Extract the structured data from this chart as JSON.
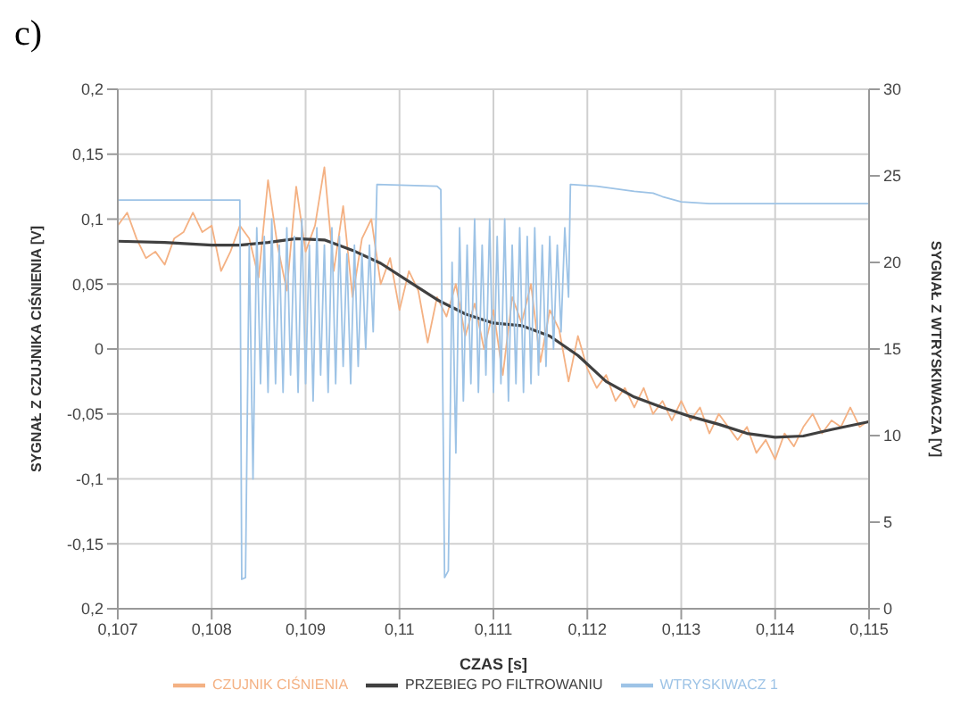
{
  "chart_data": {
    "type": "line",
    "title": "c)",
    "xlabel": "CZAS [s]",
    "ylabel": "SYGNAŁ Z CZUJNIKA CIŚNIENIA [V]",
    "y2label": "SYGNAŁ Z WTRYSKIWACZA [V]",
    "xlim": [
      0.107,
      0.115
    ],
    "xticks": [
      {
        "value": 0.107,
        "label": "0,107"
      },
      {
        "value": 0.108,
        "label": "0,108"
      },
      {
        "value": 0.109,
        "label": "0,109"
      },
      {
        "value": 0.11,
        "label": "0,11"
      },
      {
        "value": 0.111,
        "label": "0,111"
      },
      {
        "value": 0.112,
        "label": "0,112"
      },
      {
        "value": 0.113,
        "label": "0,113"
      },
      {
        "value": 0.114,
        "label": "0,114"
      },
      {
        "value": 0.115,
        "label": "0,115"
      }
    ],
    "ylim": [
      -0.2,
      0.2
    ],
    "yticks": [
      {
        "value": -0.2,
        "label": "0,2"
      },
      {
        "value": -0.15,
        "label": "-0,15"
      },
      {
        "value": -0.1,
        "label": "-0,1"
      },
      {
        "value": -0.05,
        "label": "-0,05"
      },
      0,
      {
        "value": 0.05,
        "label": "0,05"
      },
      {
        "value": 0.1,
        "label": "0,1"
      },
      {
        "value": 0.15,
        "label": "0,15"
      },
      {
        "value": 0.2,
        "label": "0,2"
      }
    ],
    "y2lim": [
      0,
      30
    ],
    "y2ticks": [
      0,
      5,
      10,
      15,
      20,
      25,
      30
    ],
    "grid": true,
    "legend": "bottom",
    "marker": "none",
    "line_style": "solid",
    "series": [
      {
        "name": "CZUJNIK CIŚNIENIA",
        "color": "#f4b183",
        "x": [
          0.107,
          0.1071,
          0.1072,
          0.1073,
          0.1074,
          0.1075,
          0.1076,
          0.1077,
          0.1078,
          0.1079,
          0.108,
          0.1081,
          0.1082,
          0.1083,
          0.1084,
          0.1085,
          0.1086,
          0.1087,
          0.1088,
          0.1089,
          0.109,
          0.1091,
          0.1092,
          0.1093,
          0.1094,
          0.1095,
          0.1096,
          0.1097,
          0.1098,
          0.1099,
          0.11,
          0.1101,
          0.1102,
          0.1103,
          0.1104,
          0.1105,
          0.1106,
          0.1107,
          0.1108,
          0.1109,
          0.111,
          0.1111,
          0.1112,
          0.1113,
          0.1114,
          0.1115,
          0.1116,
          0.1117,
          0.1118,
          0.1119,
          0.112,
          0.1121,
          0.1122,
          0.1123,
          0.1124,
          0.1125,
          0.1126,
          0.1127,
          0.1128,
          0.1129,
          0.113,
          0.1131,
          0.1132,
          0.1133,
          0.1134,
          0.1135,
          0.1136,
          0.1137,
          0.1138,
          0.1139,
          0.114,
          0.1141,
          0.1142,
          0.1143,
          0.1144,
          0.1145,
          0.1146,
          0.1147,
          0.1148,
          0.1149,
          0.115
        ],
        "values": [
          0.095,
          0.105,
          0.085,
          0.07,
          0.075,
          0.065,
          0.085,
          0.09,
          0.105,
          0.09,
          0.095,
          0.06,
          0.075,
          0.095,
          0.085,
          0.055,
          0.13,
          0.08,
          0.045,
          0.125,
          0.075,
          0.095,
          0.14,
          0.06,
          0.11,
          0.04,
          0.085,
          0.1,
          0.05,
          0.07,
          0.03,
          0.06,
          0.045,
          0.005,
          0.04,
          0.025,
          0.05,
          0.01,
          0.035,
          0,
          0.03,
          -0.02,
          0.04,
          0.02,
          0.05,
          -0.01,
          0.03,
          0.015,
          -0.025,
          0.01,
          -0.015,
          -0.03,
          -0.02,
          -0.04,
          -0.03,
          -0.045,
          -0.03,
          -0.05,
          -0.04,
          -0.055,
          -0.04,
          -0.055,
          -0.045,
          -0.065,
          -0.05,
          -0.06,
          -0.07,
          -0.06,
          -0.08,
          -0.07,
          -0.085,
          -0.065,
          -0.075,
          -0.06,
          -0.05,
          -0.065,
          -0.055,
          -0.06,
          -0.045,
          -0.06,
          -0.055
        ]
      },
      {
        "name": "PRZEBIEG PO FILTROWANIU",
        "color": "#404040",
        "x": [
          0.107,
          0.1075,
          0.108,
          0.1083,
          0.1086,
          0.1089,
          0.1092,
          0.1095,
          0.1098,
          0.1101,
          0.1104,
          0.1107,
          0.111,
          0.1113,
          0.1116,
          0.1119,
          0.1122,
          0.1125,
          0.1128,
          0.1131,
          0.1134,
          0.1137,
          0.114,
          0.1143,
          0.1146,
          0.115
        ],
        "values": [
          0.083,
          0.082,
          0.08,
          0.08,
          0.082,
          0.085,
          0.084,
          0.076,
          0.066,
          0.052,
          0.038,
          0.027,
          0.02,
          0.018,
          0.01,
          -0.005,
          -0.025,
          -0.037,
          -0.045,
          -0.052,
          -0.058,
          -0.065,
          -0.068,
          -0.067,
          -0.062,
          -0.056
        ]
      },
      {
        "name": "WTRYSKIWACZ 1",
        "color": "#9dc3e6",
        "axis": "y2",
        "x": [
          0.107,
          0.1083,
          0.10832,
          0.10836,
          0.1084,
          0.10844,
          0.10848,
          0.10852,
          0.10856,
          0.1086,
          0.10864,
          0.10868,
          0.10872,
          0.10876,
          0.1088,
          0.10884,
          0.10888,
          0.10892,
          0.10896,
          0.109,
          0.10904,
          0.10908,
          0.10912,
          0.10916,
          0.1092,
          0.10924,
          0.10928,
          0.10932,
          0.10936,
          0.1094,
          0.10944,
          0.10948,
          0.10952,
          0.10956,
          0.1096,
          0.10964,
          0.10968,
          0.10972,
          0.10976,
          0.1104,
          0.11044,
          0.11048,
          0.11052,
          0.11056,
          0.1106,
          0.11064,
          0.11068,
          0.11072,
          0.11076,
          0.1108,
          0.11084,
          0.11088,
          0.11092,
          0.11096,
          0.111,
          0.11104,
          0.11108,
          0.11112,
          0.11116,
          0.1112,
          0.11124,
          0.11128,
          0.11132,
          0.11136,
          0.1114,
          0.11144,
          0.11148,
          0.11152,
          0.11156,
          0.1116,
          0.11164,
          0.11168,
          0.11172,
          0.11176,
          0.1118,
          0.11182,
          0.1121,
          0.1125,
          0.1127,
          0.1128,
          0.113,
          0.1133,
          0.115
        ],
        "values": [
          23.6,
          23.6,
          1.7,
          1.8,
          21,
          7.5,
          22,
          13,
          21.5,
          12.5,
          22.5,
          13,
          21,
          12.5,
          22,
          13.5,
          21.5,
          12.5,
          22.5,
          13,
          21,
          12,
          22,
          13.5,
          21,
          12.5,
          22,
          13,
          21.5,
          14,
          20.5,
          13,
          21,
          14,
          20.5,
          15,
          21,
          16,
          24.5,
          24.4,
          24.2,
          1.8,
          2.2,
          20,
          9,
          22,
          12,
          21,
          13,
          22.5,
          12.5,
          21,
          13.5,
          22.5,
          12.5,
          21.5,
          13,
          22.5,
          12,
          21,
          13,
          22,
          12.5,
          21.5,
          13,
          22,
          13.5,
          21,
          14,
          21.5,
          15,
          21,
          16,
          22,
          18,
          24.5,
          24.4,
          24.1,
          24,
          23.8,
          23.5,
          23.4,
          23.4
        ]
      }
    ]
  }
}
